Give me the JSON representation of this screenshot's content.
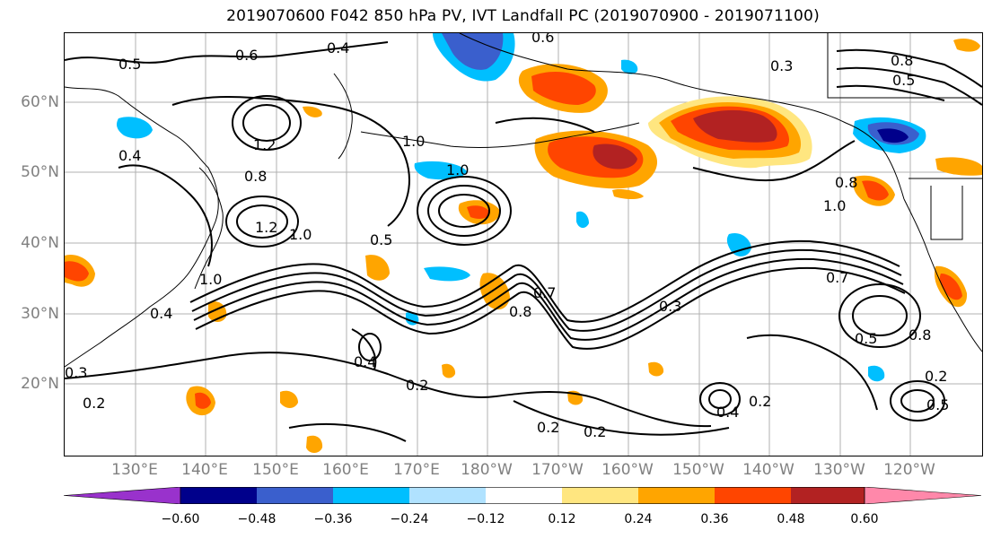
{
  "title": "2019070600 F042 850 hPa PV, IVT Landfall PC (2019070900 - 2019071100)",
  "lat_labels": [
    "60°N",
    "50°N",
    "40°N",
    "30°N",
    "20°N"
  ],
  "lon_labels": [
    "130°E",
    "140°E",
    "150°E",
    "160°E",
    "170°E",
    "180°W",
    "170°W",
    "160°W",
    "150°W",
    "140°W",
    "130°W",
    "120°W"
  ],
  "contour_labels": [
    "0.6",
    "0.4",
    "0.5",
    "0.6",
    "0.3",
    "0.8",
    "0.5",
    "1.2",
    "1.0",
    "1.0",
    "0.8",
    "1.2",
    "1.0",
    "0.5",
    "0.7",
    "0.8",
    "0.3",
    "1.0",
    "0.8",
    "0.7",
    "0.5",
    "0.8",
    "0.4",
    "0.4",
    "0.2",
    "0.2",
    "0.2",
    "0.2",
    "0.4",
    "0.5",
    "0.2",
    "0.3",
    "0.4",
    "0.2",
    "1.0"
  ],
  "colorbar": {
    "ticks": [
      "−0.60",
      "−0.48",
      "−0.36",
      "−0.24",
      "−0.12",
      "0.12",
      "0.24",
      "0.36",
      "0.48",
      "0.60"
    ],
    "colors": [
      "#9932cc",
      "#00008b",
      "#3a5fcd",
      "#00bfff",
      "#b0e2ff",
      "#ffffff",
      "#ffe680",
      "#ffa500",
      "#ff4500",
      "#b22222",
      "#ff88aa"
    ]
  },
  "colors": {
    "axis_label": "#808080",
    "pv_contour": "#000000",
    "pos_low": "#ffe680",
    "pos_mid": "#ffa500",
    "pos_high": "#ff4500",
    "pos_max": "#b22222",
    "neg_low": "#b0e2ff",
    "neg_mid": "#00bfff",
    "neg_high": "#3a5fcd",
    "neg_max": "#00008b"
  }
}
